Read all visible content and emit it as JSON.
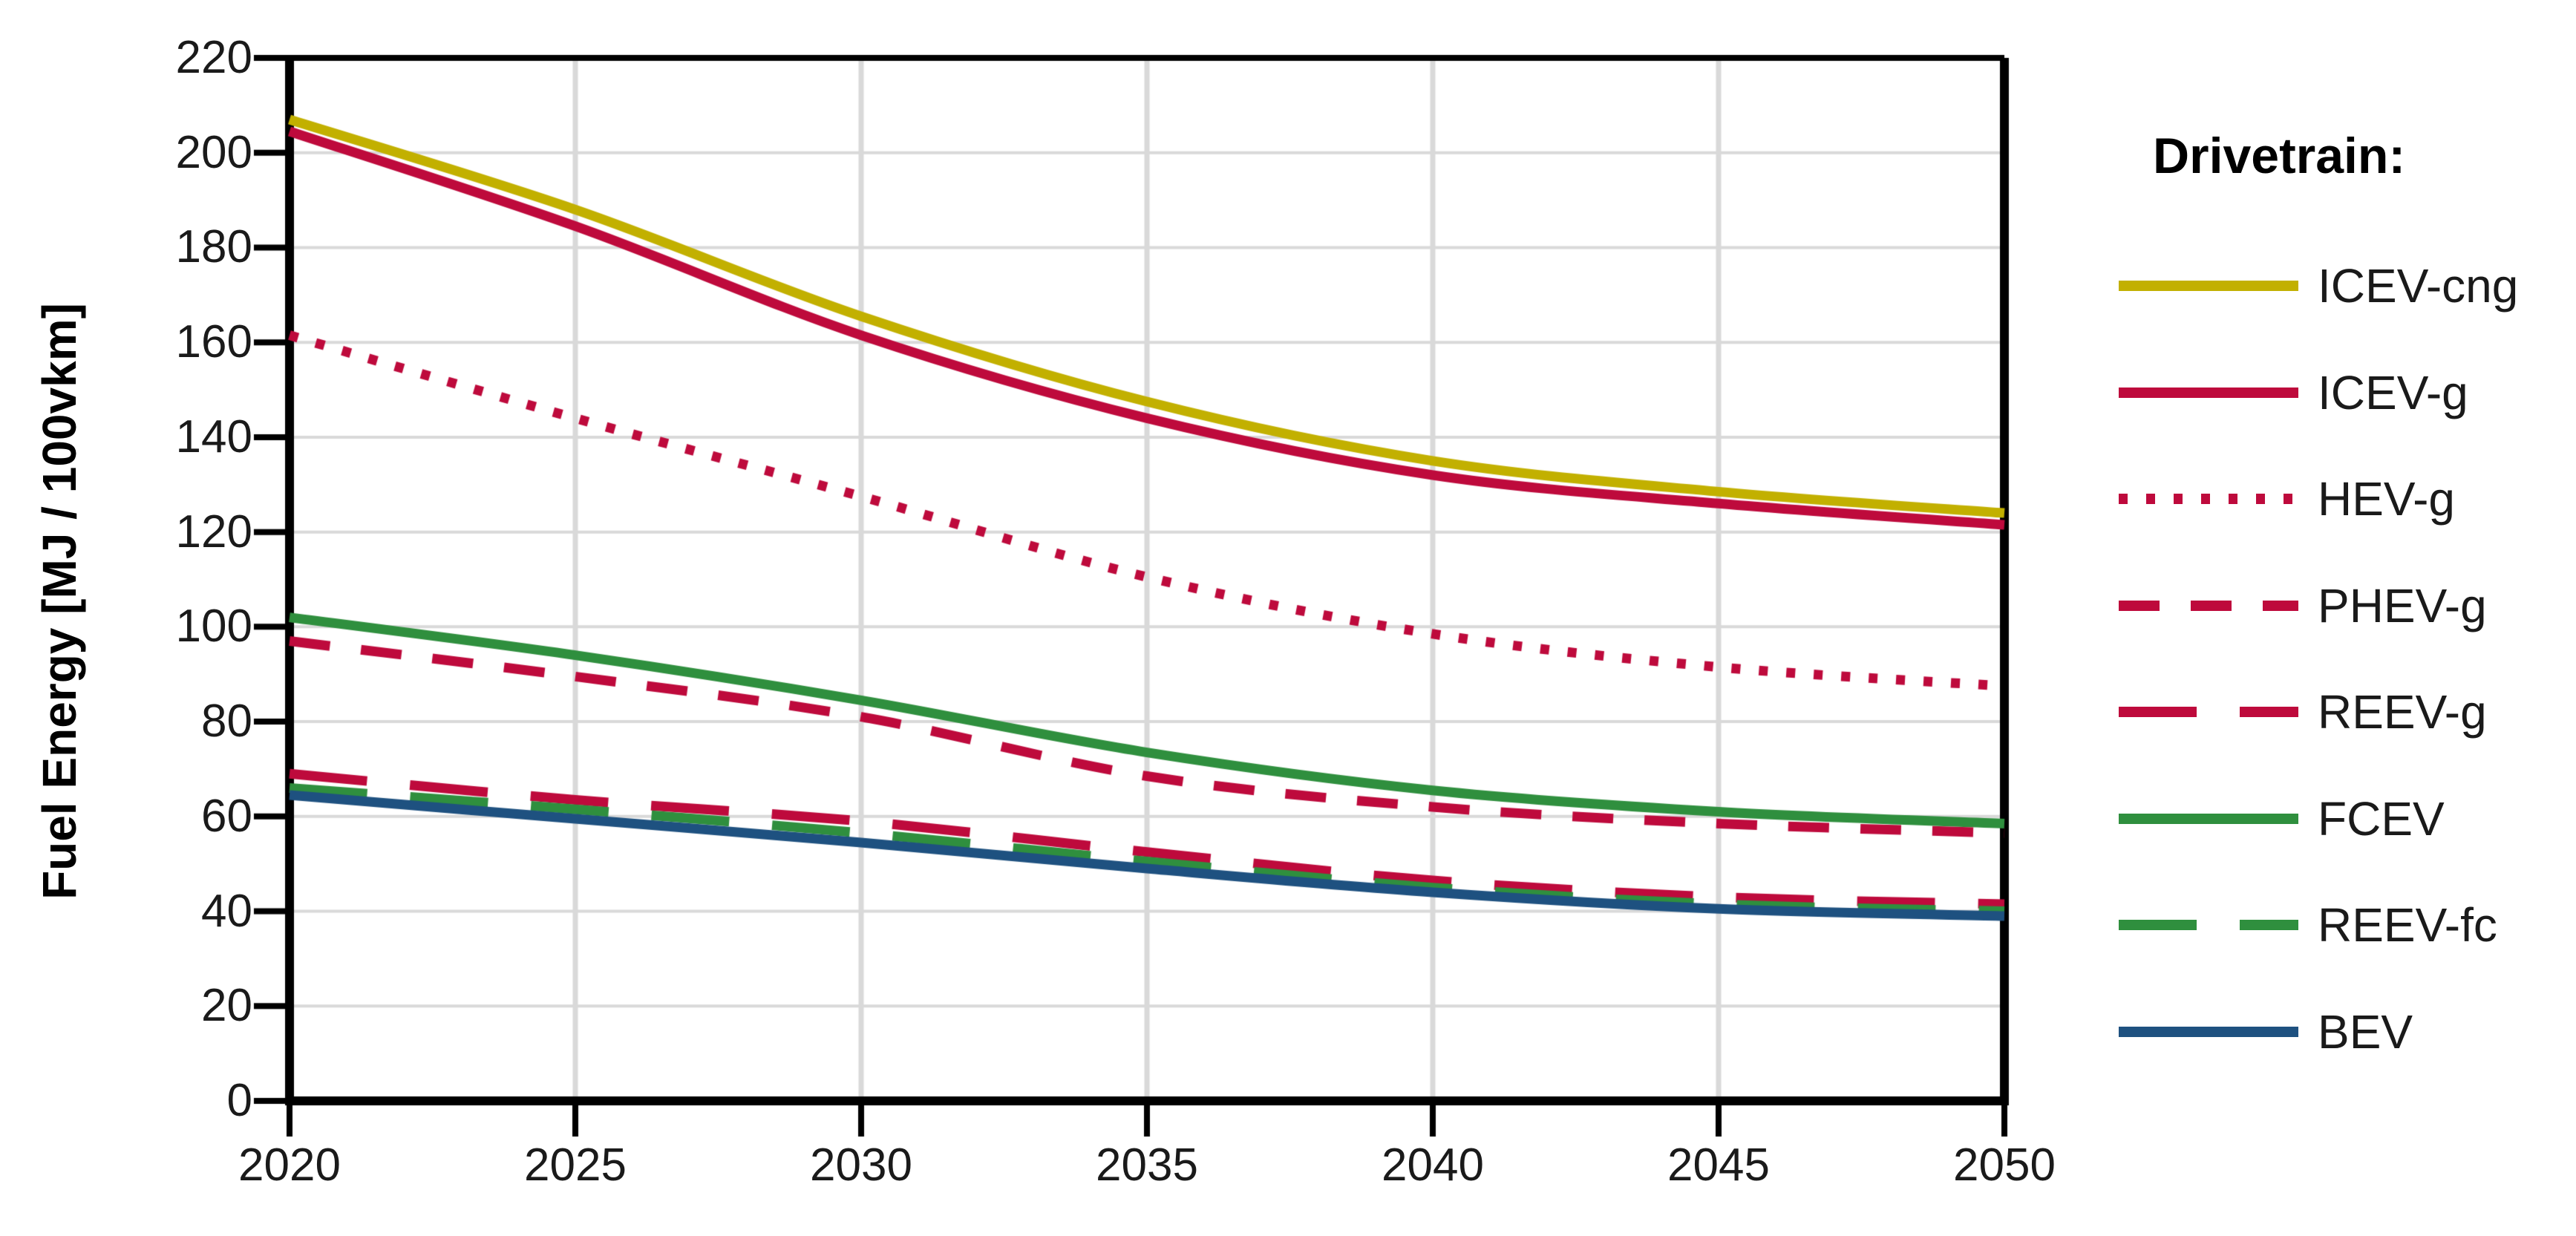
{
  "chart_data": {
    "type": "line",
    "title": "",
    "xlabel": "",
    "ylabel": "Fuel Energy [MJ / 100vkm]",
    "ylim": [
      0,
      220
    ],
    "grid": true,
    "x": [
      2020,
      2025,
      2030,
      2035,
      2040,
      2045,
      2050
    ],
    "xtick_labels": [
      "2020",
      "2025",
      "2030",
      "2035",
      "2040",
      "2045",
      "2050"
    ],
    "ytick_values": [
      0,
      20,
      40,
      60,
      80,
      100,
      120,
      140,
      160,
      180,
      200,
      220
    ],
    "ytick_labels": [
      "0",
      "20",
      "40",
      "60",
      "80",
      "100",
      "120",
      "140",
      "160",
      "180",
      "200",
      "220"
    ],
    "legend_title": "Drivetrain:",
    "legend_position": "right",
    "series": [
      {
        "name": "ICEV-cng",
        "color": "#C2B000",
        "style": "solid",
        "values": [
          207.0,
          188.0,
          165.5,
          147.5,
          135.0,
          128.5,
          124.0
        ]
      },
      {
        "name": "ICEV-g",
        "color": "#BE0A3C",
        "style": "solid",
        "values": [
          204.5,
          184.5,
          161.5,
          144.0,
          132.0,
          126.0,
          121.5
        ]
      },
      {
        "name": "HEV-g",
        "color": "#BE0A3C",
        "style": "dotted",
        "values": [
          161.5,
          144.0,
          127.5,
          110.5,
          98.5,
          91.5,
          87.5
        ]
      },
      {
        "name": "PHEV-g",
        "color": "#BE0A3C",
        "style": "dash",
        "values": [
          97.0,
          89.5,
          81.0,
          68.5,
          62.0,
          58.5,
          56.5
        ]
      },
      {
        "name": "REEV-g",
        "color": "#BE0A3C",
        "style": "longdash",
        "values": [
          69.0,
          63.5,
          59.0,
          52.5,
          46.5,
          43.0,
          41.5
        ]
      },
      {
        "name": "FCEV",
        "color": "#2F8F3E",
        "style": "solid",
        "values": [
          102.0,
          94.0,
          84.5,
          73.5,
          65.5,
          61.0,
          58.5
        ]
      },
      {
        "name": "REEV-fc",
        "color": "#2F8F3E",
        "style": "longdash",
        "values": [
          66.0,
          61.5,
          56.5,
          50.5,
          45.0,
          41.5,
          40.0
        ]
      },
      {
        "name": "BEV",
        "color": "#1E5180",
        "style": "solid",
        "values": [
          64.5,
          59.5,
          54.5,
          49.0,
          44.0,
          40.5,
          39.0
        ]
      }
    ],
    "colors": {
      "grid": "#D9D9D9",
      "axis": "#000000",
      "tick_label": "#1A1A1A"
    }
  }
}
